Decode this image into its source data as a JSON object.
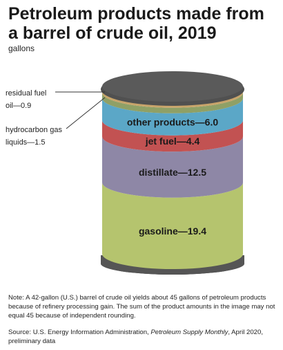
{
  "title": "Petroleum products made from a barrel of crude oil, 2019",
  "unit_label": "gallons",
  "chart_data": {
    "type": "bar",
    "title": "Petroleum products made from a barrel of crude oil, 2019",
    "ylabel": "gallons",
    "categories": [
      "gasoline",
      "distillate",
      "jet fuel",
      "other products",
      "hydrocarbon gas liquids",
      "residual fuel oil"
    ],
    "values": [
      19.4,
      12.5,
      4.4,
      6.0,
      1.5,
      0.9
    ],
    "colors": [
      "#b5c46e",
      "#8e87a6",
      "#c25252",
      "#5ba7c7",
      "#8fa066",
      "#c8a46a"
    ],
    "labels_inside": [
      "gasoline—19.4",
      "distillate—12.5",
      "jet fuel—4.4",
      "other products—6.0"
    ],
    "labels_outside": {
      "residual_line1": "residual fuel",
      "residual_line2": "oil—0.9",
      "hgl_line1": "hydrocarbon gas",
      "hgl_line2": "liquids—1.5"
    }
  },
  "note": "Note: A 42-gallon (U.S.) barrel of crude oil yields about 45 gallons of petroleum products because of refinery processing gain. The sum of the product amounts in the image may not equal 45 because of independent rounding.",
  "source": {
    "prefix": "Source: U.S. Energy Information Administration, ",
    "publication": "Petroleum Supply Monthly",
    "suffix": ", April 2020, preliminary data"
  }
}
